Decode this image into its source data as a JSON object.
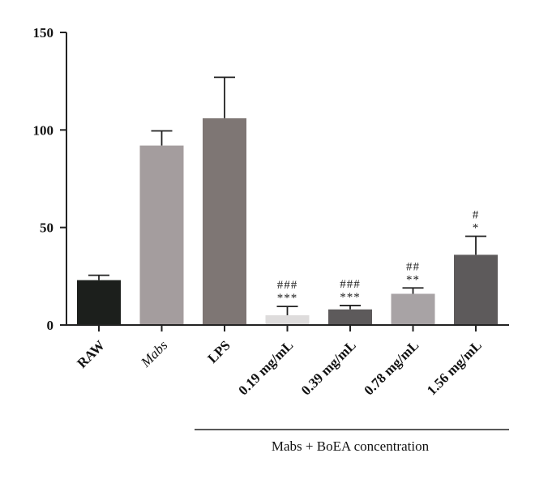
{
  "chart_data": {
    "type": "bar",
    "categories": [
      "RAW",
      "Mabs",
      "LPS",
      "0.19 mg/mL",
      "0.39 mg/mL",
      "0.78 mg/mL",
      "1.56 mg/mL"
    ],
    "values": [
      23,
      92,
      106,
      5,
      8,
      16,
      36
    ],
    "errors": [
      2.5,
      7.5,
      21,
      4.5,
      2,
      3,
      9.5
    ],
    "colors": [
      "#1c1f1c",
      "#a49d9e",
      "#7e7674",
      "#dedcdc",
      "#5d5a5b",
      "#a8a3a5",
      "#5d5a5b"
    ],
    "italic_categories": [
      "Mabs"
    ],
    "significance": [
      {
        "category": "0.19 mg/mL",
        "upper": "###",
        "lower": "***"
      },
      {
        "category": "0.39 mg/mL",
        "upper": "###",
        "lower": "***"
      },
      {
        "category": "0.78 mg/mL",
        "upper": "##",
        "lower": "**"
      },
      {
        "category": "1.56 mg/mL",
        "upper": "#",
        "lower": "*"
      }
    ],
    "group_label": "Mabs + BoEA concentration",
    "ylim": [
      0,
      150
    ],
    "yticks": [
      0,
      50,
      100,
      150
    ],
    "title": "",
    "xlabel": "",
    "ylabel": ""
  }
}
